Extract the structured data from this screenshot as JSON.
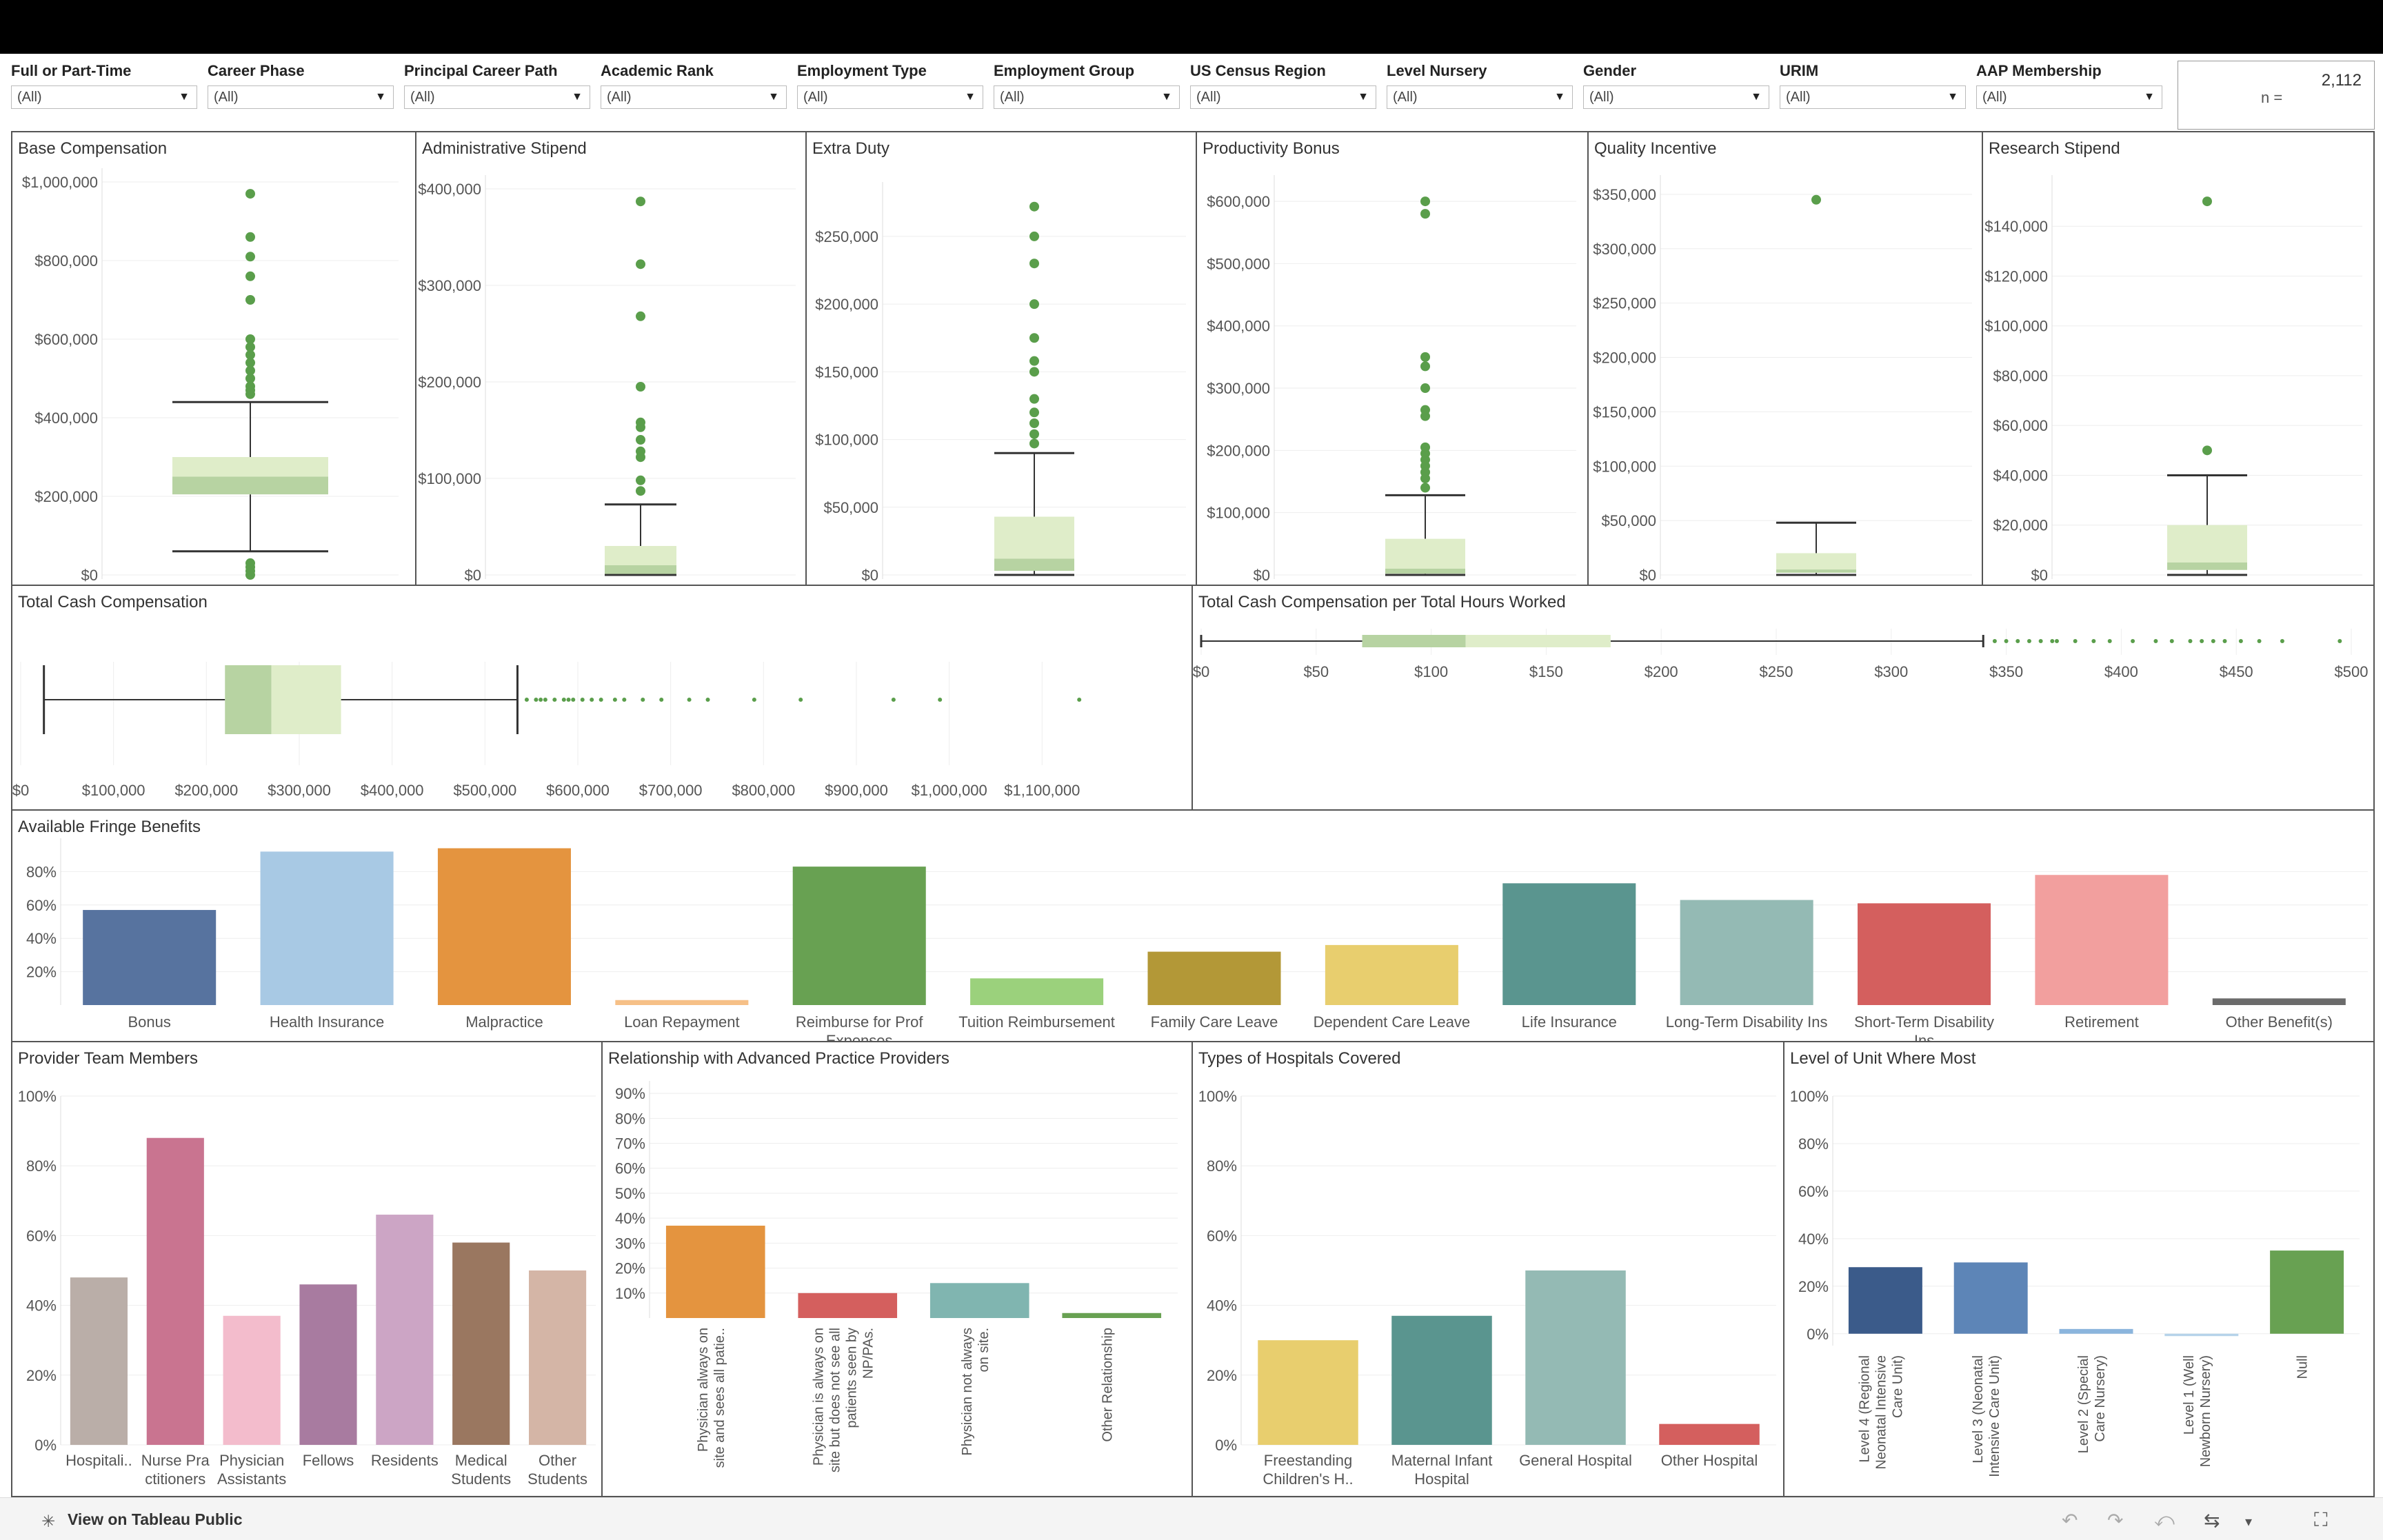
{
  "filters": [
    {
      "label": "Full or Part-Time",
      "value": "(All)"
    },
    {
      "label": "Career Phase",
      "value": "(All)"
    },
    {
      "label": "Principal Career Path",
      "value": "(All)"
    },
    {
      "label": "Academic Rank",
      "value": "(All)"
    },
    {
      "label": "Employment Type",
      "value": "(All)"
    },
    {
      "label": "Employment Group",
      "value": "(All)"
    },
    {
      "label": "US Census Region",
      "value": "(All)"
    },
    {
      "label": "Level Nursery",
      "value": "(All)"
    },
    {
      "label": "Gender",
      "value": "(All)"
    },
    {
      "label": "URIM",
      "value": "(All)"
    },
    {
      "label": "AAP Membership",
      "value": "(All)"
    }
  ],
  "count": {
    "label": "n =",
    "value": "2,112"
  },
  "footer": {
    "view_label": "View on Tableau Public"
  },
  "colors": {
    "box_light": "#dfedc9",
    "box_dark": "#b7d3a2",
    "outlier": "#5a9e4b",
    "whisker": "#333333"
  },
  "chart_data": [
    {
      "id": "base",
      "type": "boxplot",
      "orientation": "vertical",
      "title": "Base Compensation",
      "ylim": [
        0,
        1000000
      ],
      "ticks": [
        {
          "v": 0,
          "t": "$0"
        },
        {
          "v": 200000,
          "t": "$200,000"
        },
        {
          "v": 400000,
          "t": "$400,000"
        },
        {
          "v": 600000,
          "t": "$600,000"
        },
        {
          "v": 800000,
          "t": "$800,000"
        },
        {
          "v": 1000000,
          "t": "$1,000,000"
        }
      ],
      "stats": {
        "wlo": 60000,
        "q1": 205000,
        "median": 250000,
        "q3": 300000,
        "whi": 440000
      },
      "outliers": [
        970000,
        860000,
        810000,
        760000,
        700000,
        600000,
        580000,
        560000,
        540000,
        520000,
        500000,
        480000,
        470000,
        460000,
        0,
        10000,
        20000,
        30000
      ]
    },
    {
      "id": "admin",
      "type": "boxplot",
      "orientation": "vertical",
      "title": "Administrative Stipend",
      "ylim": [
        0,
        400000
      ],
      "ticks": [
        {
          "v": 0,
          "t": "$0"
        },
        {
          "v": 100000,
          "t": "$100,000"
        },
        {
          "v": 200000,
          "t": "$200,000"
        },
        {
          "v": 300000,
          "t": "$300,000"
        },
        {
          "v": 400000,
          "t": "$400,000"
        }
      ],
      "stats": {
        "wlo": 0,
        "q1": 1000,
        "median": 10000,
        "q3": 30000,
        "whi": 73000
      },
      "outliers": [
        387000,
        322000,
        268000,
        195000,
        158000,
        153000,
        140000,
        128000,
        122000,
        98000,
        87000
      ]
    },
    {
      "id": "extra",
      "type": "boxplot",
      "orientation": "vertical",
      "title": "Extra Duty",
      "ylim": [
        0,
        280000
      ],
      "ticks": [
        {
          "v": 0,
          "t": "$0"
        },
        {
          "v": 50000,
          "t": "$50,000"
        },
        {
          "v": 100000,
          "t": "$100,000"
        },
        {
          "v": 150000,
          "t": "$150,000"
        },
        {
          "v": 200000,
          "t": "$200,000"
        },
        {
          "v": 250000,
          "t": "$250,000"
        }
      ],
      "stats": {
        "wlo": 0,
        "q1": 3000,
        "median": 12000,
        "q3": 43000,
        "whi": 90000
      },
      "outliers": [
        272000,
        250000,
        230000,
        200000,
        175000,
        158000,
        150000,
        130000,
        120000,
        112000,
        104000,
        97000
      ]
    },
    {
      "id": "prod",
      "type": "boxplot",
      "orientation": "vertical",
      "title": "Productivity Bonus",
      "ylim": [
        0,
        620000
      ],
      "ticks": [
        {
          "v": 0,
          "t": "$0"
        },
        {
          "v": 100000,
          "t": "$100,000"
        },
        {
          "v": 200000,
          "t": "$200,000"
        },
        {
          "v": 300000,
          "t": "$300,000"
        },
        {
          "v": 400000,
          "t": "$400,000"
        },
        {
          "v": 500000,
          "t": "$500,000"
        },
        {
          "v": 600000,
          "t": "$600,000"
        }
      ],
      "stats": {
        "wlo": 0,
        "q1": 2000,
        "median": 10000,
        "q3": 58000,
        "whi": 128000
      },
      "outliers": [
        600000,
        580000,
        350000,
        335000,
        300000,
        265000,
        255000,
        205000,
        195000,
        185000,
        175000,
        165000,
        155000,
        140000
      ]
    },
    {
      "id": "quality",
      "type": "boxplot",
      "orientation": "vertical",
      "title": "Quality Incentive",
      "ylim": [
        0,
        355000
      ],
      "ticks": [
        {
          "v": 0,
          "t": "$0"
        },
        {
          "v": 50000,
          "t": "$50,000"
        },
        {
          "v": 100000,
          "t": "$100,000"
        },
        {
          "v": 150000,
          "t": "$150,000"
        },
        {
          "v": 200000,
          "t": "$200,000"
        },
        {
          "v": 250000,
          "t": "$250,000"
        },
        {
          "v": 300000,
          "t": "$300,000"
        },
        {
          "v": 350000,
          "t": "$350,000"
        }
      ],
      "stats": {
        "wlo": 0,
        "q1": 2000,
        "median": 5000,
        "q3": 20000,
        "whi": 48000
      },
      "outliers": [
        345000
      ]
    },
    {
      "id": "research",
      "type": "boxplot",
      "orientation": "vertical",
      "title": "Research Stipend",
      "ylim": [
        0,
        155000
      ],
      "ticks": [
        {
          "v": 0,
          "t": "$0"
        },
        {
          "v": 20000,
          "t": "$20,000"
        },
        {
          "v": 40000,
          "t": "$40,000"
        },
        {
          "v": 60000,
          "t": "$60,000"
        },
        {
          "v": 80000,
          "t": "$80,000"
        },
        {
          "v": 100000,
          "t": "$100,000"
        },
        {
          "v": 120000,
          "t": "$120,000"
        },
        {
          "v": 140000,
          "t": "$140,000"
        }
      ],
      "stats": {
        "wlo": 0,
        "q1": 2000,
        "median": 5000,
        "q3": 20000,
        "whi": 40000
      },
      "outliers": [
        150000,
        50000
      ]
    },
    {
      "id": "tcc",
      "type": "boxplot",
      "orientation": "horizontal",
      "title": "Total Cash Compensation",
      "xlim": [
        0,
        1200000
      ],
      "ticks": [
        {
          "v": 0,
          "t": "$0"
        },
        {
          "v": 100000,
          "t": "$100,000"
        },
        {
          "v": 200000,
          "t": "$200,000"
        },
        {
          "v": 300000,
          "t": "$300,000"
        },
        {
          "v": 400000,
          "t": "$400,000"
        },
        {
          "v": 500000,
          "t": "$500,000"
        },
        {
          "v": 600000,
          "t": "$600,000"
        },
        {
          "v": 700000,
          "t": "$700,000"
        },
        {
          "v": 800000,
          "t": "$800,000"
        },
        {
          "v": 900000,
          "t": "$900,000"
        },
        {
          "v": 1000000,
          "t": "$1,000,000"
        },
        {
          "v": 1100000,
          "t": "$1,100,000"
        }
      ],
      "stats": {
        "wlo": 25000,
        "q1": 220000,
        "median": 270000,
        "q3": 345000,
        "whi": 535000
      },
      "outliers": [
        545000,
        555000,
        560000,
        565000,
        575000,
        585000,
        590000,
        595000,
        605000,
        615000,
        625000,
        640000,
        650000,
        670000,
        690000,
        720000,
        740000,
        790000,
        840000,
        940000,
        990000,
        1140000
      ]
    },
    {
      "id": "tcch",
      "type": "boxplot",
      "orientation": "horizontal",
      "title": "Total Cash Compensation per Total Hours Worked",
      "xlim": [
        0,
        500
      ],
      "ticks": [
        {
          "v": 0,
          "t": "$0"
        },
        {
          "v": 50,
          "t": "$50"
        },
        {
          "v": 100,
          "t": "$100"
        },
        {
          "v": 150,
          "t": "$150"
        },
        {
          "v": 200,
          "t": "$200"
        },
        {
          "v": 250,
          "t": "$250"
        },
        {
          "v": 300,
          "t": "$300"
        },
        {
          "v": 350,
          "t": "$350"
        },
        {
          "v": 400,
          "t": "$400"
        },
        {
          "v": 450,
          "t": "$450"
        },
        {
          "v": 500,
          "t": "$500"
        }
      ],
      "stats": {
        "wlo": 0,
        "q1": 70,
        "median": 115,
        "q3": 178,
        "whi": 340
      },
      "outliers": [
        345,
        350,
        355,
        360,
        365,
        370,
        372,
        380,
        388,
        395,
        405,
        415,
        422,
        430,
        435,
        440,
        445,
        452,
        460,
        470,
        495
      ]
    },
    {
      "id": "fringe",
      "type": "bar",
      "title": "Available Fringe Benefits",
      "ylim": [
        0,
        100
      ],
      "ticks": [
        {
          "v": 20,
          "t": "20%"
        },
        {
          "v": 40,
          "t": "40%"
        },
        {
          "v": 60,
          "t": "60%"
        },
        {
          "v": 80,
          "t": "80%"
        }
      ],
      "categories": [
        "Bonus",
        "Health Insurance",
        "Malpractice",
        "Loan Repayment",
        "Reimburse for Prof Expenses",
        "Tuition Reimbursement",
        "Family Care Leave",
        "Dependent Care Leave",
        "Life Insurance",
        "Long-Term Disability Ins",
        "Short-Term Disability Ins",
        "Retirement",
        "Other Benefit(s)"
      ],
      "labels": [
        [
          "Bonus"
        ],
        [
          "Health Insurance"
        ],
        [
          "Malpractice"
        ],
        [
          "Loan Repayment"
        ],
        [
          "Reimburse for Prof",
          "Expenses"
        ],
        [
          "Tuition Reimbursement"
        ],
        [
          "Family Care Leave"
        ],
        [
          "Dependent Care Leave"
        ],
        [
          "Life Insurance"
        ],
        [
          "Long-Term Disability Ins"
        ],
        [
          "Short-Term Disability",
          "Ins"
        ],
        [
          "Retirement"
        ],
        [
          "Other Benefit(s)"
        ]
      ],
      "values": [
        57,
        92,
        94,
        3,
        83,
        16,
        32,
        36,
        73,
        63,
        61,
        78,
        4
      ],
      "colors": [
        "#57739f",
        "#a8c9e4",
        "#e4943f",
        "#f6c087",
        "#68a152",
        "#9bd17c",
        "#b39837",
        "#e8ce6e",
        "#5a958f",
        "#94bab4",
        "#d45f5e",
        "#f29f9e",
        "#6b6b6b"
      ]
    },
    {
      "id": "team",
      "type": "bar",
      "title": "Provider Team Members",
      "ylim": [
        0,
        100
      ],
      "ticks": [
        {
          "v": 0,
          "t": "0%"
        },
        {
          "v": 20,
          "t": "20%"
        },
        {
          "v": 40,
          "t": "40%"
        },
        {
          "v": 60,
          "t": "60%"
        },
        {
          "v": 80,
          "t": "80%"
        },
        {
          "v": 100,
          "t": "100%"
        }
      ],
      "categories": [
        "Hospitalists",
        "Nurse Practitioners",
        "Physician Assistants",
        "Fellows",
        "Residents",
        "Medical Students",
        "Other Students"
      ],
      "labels": [
        [
          "Hospitali.."
        ],
        [
          "Nurse Pra",
          "ctitioners"
        ],
        [
          "Physician",
          "Assistants"
        ],
        [
          "Fellows"
        ],
        [
          "Residents"
        ],
        [
          "Medical",
          "Students"
        ],
        [
          "Other",
          "Students"
        ]
      ],
      "values": [
        48,
        88,
        37,
        46,
        66,
        58,
        50
      ],
      "colors": [
        "#baaea8",
        "#c97490",
        "#f3bccc",
        "#a87ba0",
        "#cca5c5",
        "#9a7760",
        "#d4b5a6"
      ]
    },
    {
      "id": "app",
      "type": "bar",
      "title": "Relationship with Advanced Practice Providers",
      "ylim": [
        0,
        95
      ],
      "rotated": true,
      "ticks": [
        {
          "v": 10,
          "t": "10%"
        },
        {
          "v": 20,
          "t": "20%"
        },
        {
          "v": 30,
          "t": "30%"
        },
        {
          "v": 40,
          "t": "40%"
        },
        {
          "v": 50,
          "t": "50%"
        },
        {
          "v": 60,
          "t": "60%"
        },
        {
          "v": 70,
          "t": "70%"
        },
        {
          "v": 80,
          "t": "80%"
        },
        {
          "v": 90,
          "t": "90%"
        }
      ],
      "categories": [
        "Physician always on site and sees all patients",
        "Physician is always on site but does not see all patients seen by NP/PAs.",
        "Physician not always on site.",
        "Other Relationship"
      ],
      "labels": [
        [
          "Physician always on",
          "site and sees all patie.."
        ],
        [
          "Physician is always on",
          "site but does not see all",
          "patients seen by",
          "NP/PAs."
        ],
        [
          "Physician not always",
          "on site."
        ],
        [
          "Other Relationship"
        ]
      ],
      "values": [
        37,
        10,
        14,
        2
      ],
      "colors": [
        "#e4943f",
        "#d45f5e",
        "#80b5b0",
        "#68a152"
      ]
    },
    {
      "id": "hosp",
      "type": "bar",
      "title": "Types of Hospitals Covered",
      "ylim": [
        0,
        100
      ],
      "ticks": [
        {
          "v": 0,
          "t": "0%"
        },
        {
          "v": 20,
          "t": "20%"
        },
        {
          "v": 40,
          "t": "40%"
        },
        {
          "v": 60,
          "t": "60%"
        },
        {
          "v": 80,
          "t": "80%"
        },
        {
          "v": 100,
          "t": "100%"
        }
      ],
      "categories": [
        "Freestanding Children's Hospital",
        "Maternal Infant Hospital",
        "General Hospital",
        "Other Hospital"
      ],
      "labels": [
        [
          "Freestanding",
          "Children's H.."
        ],
        [
          "Maternal Infant",
          "Hospital"
        ],
        [
          "General Hospital"
        ],
        [
          "Other Hospital"
        ]
      ],
      "values": [
        30,
        37,
        50,
        6
      ],
      "colors": [
        "#e8ce6e",
        "#5a958f",
        "#94bab4",
        "#d45f5e"
      ]
    },
    {
      "id": "unit",
      "type": "bar",
      "title": "Level of Unit Where Most",
      "ylim": [
        -5,
        100
      ],
      "rotated": true,
      "ticks": [
        {
          "v": 0,
          "t": "0%"
        },
        {
          "v": 20,
          "t": "20%"
        },
        {
          "v": 40,
          "t": "40%"
        },
        {
          "v": 60,
          "t": "60%"
        },
        {
          "v": 80,
          "t": "80%"
        },
        {
          "v": 100,
          "t": "100%"
        }
      ],
      "categories": [
        "Level 4 (Regional Neonatal Intensive Care Unit)",
        "Level 3 (Neonatal Intensive Care Unit)",
        "Level 2 (Special Care Nursery)",
        "Level 1 (Well Newborn Nursery)",
        "Null"
      ],
      "labels": [
        [
          "Level 4 (Regional",
          "Neonatal Intensive",
          "Care Unit)"
        ],
        [
          "Level 3 (Neonatal",
          "Intensive Care Unit)"
        ],
        [
          "Level 2 (Special",
          "Care Nursery)"
        ],
        [
          "Level 1 (Well",
          "Newborn Nursery)"
        ],
        [
          "Null"
        ]
      ],
      "values": [
        28,
        30,
        2,
        -1,
        35
      ],
      "colors": [
        "#3b5b8a",
        "#5d85b7",
        "#8bb5dd",
        "#b6d3ea",
        "#68a152"
      ]
    }
  ]
}
